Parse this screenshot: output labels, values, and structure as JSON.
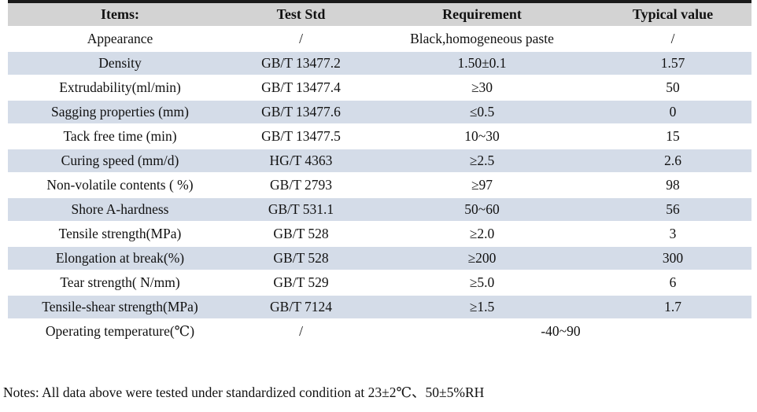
{
  "table": {
    "columns": [
      {
        "label": "Items:"
      },
      {
        "label": "Test Std"
      },
      {
        "label": "Requirement"
      },
      {
        "label": "Typical value"
      }
    ],
    "rows": [
      {
        "item": "Appearance",
        "test_std": "/",
        "requirement": "Black,homogeneous paste",
        "typical": "/"
      },
      {
        "item": "Density",
        "test_std": "GB/T 13477.2",
        "requirement": "1.50±0.1",
        "typical": "1.57"
      },
      {
        "item": "Extrudability(ml/min)",
        "test_std": "GB/T 13477.4",
        "requirement": "≥30",
        "typical": "50"
      },
      {
        "item": "Sagging properties (mm)",
        "test_std": "GB/T 13477.6",
        "requirement": "≤0.5",
        "typical": "0"
      },
      {
        "item": "Tack free time (min)",
        "test_std": "GB/T 13477.5",
        "requirement": "10~30",
        "typical": "15"
      },
      {
        "item": "Curing speed (mm/d)",
        "test_std": "HG/T 4363",
        "requirement": "≥2.5",
        "typical": "2.6"
      },
      {
        "item": "Non-volatile contents ( %)",
        "test_std": "GB/T 2793",
        "requirement": "≥97",
        "typical": "98"
      },
      {
        "item": "Shore A-hardness",
        "test_std": "GB/T 531.1",
        "requirement": "50~60",
        "typical": "56"
      },
      {
        "item": "Tensile strength(MPa)",
        "test_std": "GB/T 528",
        "requirement": "≥2.0",
        "typical": "3"
      },
      {
        "item": "Elongation at break(%)",
        "test_std": "GB/T 528",
        "requirement": "≥200",
        "typical": "300"
      },
      {
        "item": "Tear strength( N/mm)",
        "test_std": "GB/T 529",
        "requirement": "≥5.0",
        "typical": "6"
      },
      {
        "item": "Tensile-shear strength(MPa)",
        "test_std": "GB/T 7124",
        "requirement": "≥1.5",
        "typical": "1.7"
      },
      {
        "item": "Operating temperature(℃)",
        "test_std": "/",
        "requirement_span": "-40~90"
      }
    ],
    "colors": {
      "stripe": "#d4dce8",
      "header_bg": "#d3d3d3",
      "top_border": "#1a1a1a"
    }
  },
  "notes": "Notes: All data above were tested under standardized condition at 23±2℃、50±5%RH"
}
